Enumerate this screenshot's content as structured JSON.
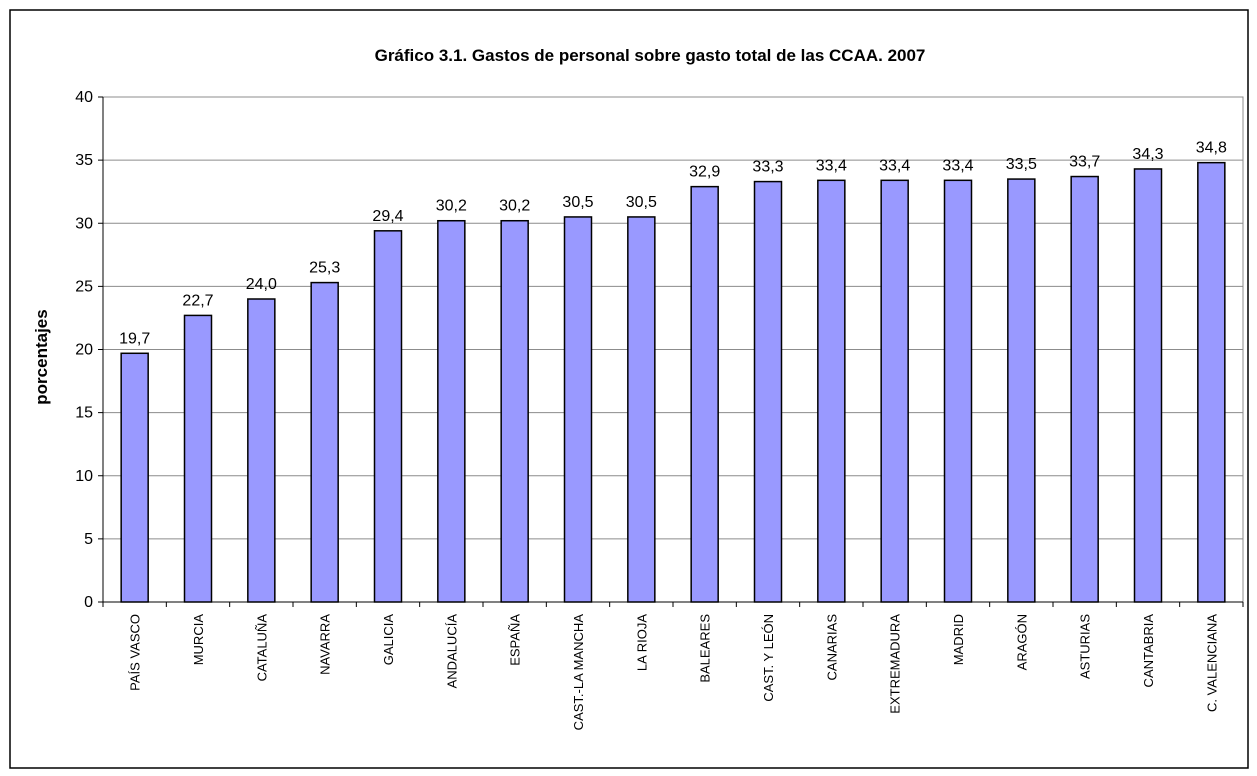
{
  "chart_data": {
    "type": "bar",
    "title": "Gráfico 3.1. Gastos de personal sobre gasto total de las CCAA. 2007",
    "y_label": "porcentajes",
    "categories": [
      "PAÍS VASCO",
      "MURCIA",
      "CATALUÑA",
      "NAVARRA",
      "GALICIA",
      "ANDALUCÍA",
      "ESPAÑA",
      "CAST.-LA MANCHA",
      "LA RIOJA",
      "BALEARES",
      "CAST. Y LEÓN",
      "CANARIAS",
      "EXTREMADURA",
      "MADRID",
      "ARAGÓN",
      "ASTURIAS",
      "CANTABRIA",
      "C. VALENCIANA"
    ],
    "values": [
      19.7,
      22.7,
      24.0,
      25.3,
      29.4,
      30.2,
      30.2,
      30.5,
      30.5,
      32.9,
      33.3,
      33.4,
      33.4,
      33.4,
      33.5,
      33.7,
      34.3,
      34.8
    ],
    "value_labels": [
      "19,7",
      "22,7",
      "24,0",
      "25,3",
      "29,4",
      "30,2",
      "30,2",
      "30,5",
      "30,5",
      "32,9",
      "33,3",
      "33,4",
      "33,4",
      "33,4",
      "33,5",
      "33,7",
      "34,3",
      "34,8"
    ],
    "color": "#9999ff",
    "ylim": [
      0,
      40
    ],
    "yticks": [
      0,
      5,
      10,
      15,
      20,
      25,
      30,
      35,
      40
    ],
    "grid": true
  }
}
